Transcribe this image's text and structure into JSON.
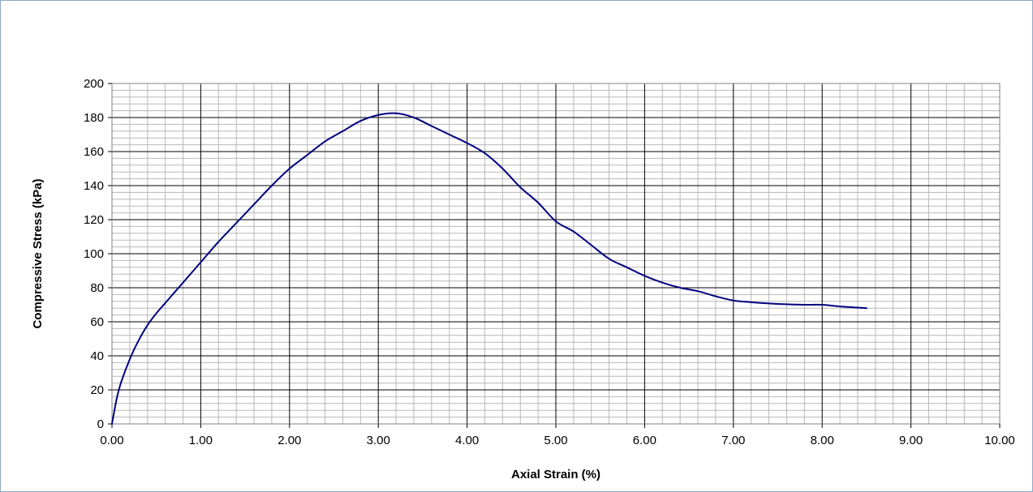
{
  "chart_data": {
    "type": "line",
    "title": "",
    "xlabel": "Axial Strain (%)",
    "ylabel": "Compressive Stress (kPa)",
    "xlim": [
      0,
      10
    ],
    "ylim": [
      0,
      200
    ],
    "x_ticks": [
      "0.00",
      "1.00",
      "2.00",
      "3.00",
      "4.00",
      "5.00",
      "6.00",
      "7.00",
      "8.00",
      "9.00",
      "10.00"
    ],
    "y_ticks": [
      "0",
      "20",
      "40",
      "60",
      "80",
      "100",
      "120",
      "140",
      "160",
      "180",
      "200"
    ],
    "grid": true,
    "legend": "none",
    "line_color": "#000080",
    "series": [
      {
        "x": [
          0,
          0.05,
          0.1,
          0.2,
          0.3,
          0.4,
          0.5,
          0.6,
          0.8,
          1.0,
          1.2,
          1.4,
          1.6,
          1.8,
          2.0,
          2.2,
          2.4,
          2.6,
          2.8,
          3.0,
          3.2,
          3.4,
          3.6,
          3.8,
          4.0,
          4.2,
          4.4,
          4.6,
          4.8,
          5.0,
          5.2,
          5.4,
          5.6,
          5.8,
          6.0,
          6.2,
          6.4,
          6.6,
          6.8,
          7.0,
          7.2,
          7.4,
          7.6,
          7.8,
          8.0,
          8.2,
          8.5
        ],
        "y": [
          0,
          14,
          24,
          38,
          49,
          58,
          65,
          71,
          83,
          95,
          107,
          118,
          129,
          140,
          150,
          158,
          166,
          172,
          178,
          181.5,
          182.5,
          180,
          175,
          170,
          165,
          159,
          150,
          139,
          130,
          119,
          113,
          105,
          97,
          92,
          87,
          83,
          80,
          78,
          75,
          72.5,
          71.5,
          70.8,
          70.3,
          70,
          70,
          69,
          68
        ]
      }
    ]
  }
}
